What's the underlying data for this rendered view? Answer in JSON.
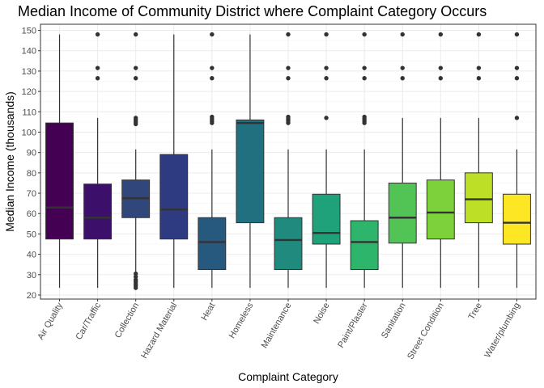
{
  "chart_data": {
    "type": "boxplot",
    "title": "Median Income of Community District where Complaint Category Occurs",
    "xlabel": "Complaint Category",
    "ylabel": "Median Income (thousands)",
    "ylim": [
      18,
      153
    ],
    "yticks": [
      20,
      30,
      40,
      50,
      60,
      70,
      80,
      90,
      100,
      110,
      120,
      130,
      140,
      150
    ],
    "grid": true,
    "categories": [
      "Air Quality",
      "Car/Traffic",
      "Collection",
      "Hazard Material",
      "Heat",
      "Homeless",
      "Maintenance",
      "Noise",
      "Paint/Plaster",
      "Sanitation",
      "Street Condition",
      "Tree",
      "Water/plumbing"
    ],
    "colors": [
      "#440154",
      "#3c0f6b",
      "#31477b",
      "#2f3b80",
      "#27597f",
      "#21707f",
      "#1f8a7d",
      "#1fa17a",
      "#2db56b",
      "#52c355",
      "#7dd23b",
      "#bddf26",
      "#fde725"
    ],
    "boxes": [
      {
        "low": 23.5,
        "q1": 47.5,
        "median": 63,
        "q3": 104.5,
        "high": 148,
        "outliers": []
      },
      {
        "low": 23.5,
        "q1": 47.5,
        "median": 58,
        "q3": 74.5,
        "high": 107,
        "outliers": [
          126.5,
          131.5,
          148
        ]
      },
      {
        "low": 23.5,
        "q1": 58,
        "median": 67.5,
        "q3": 76.5,
        "high": 91.5,
        "outliers": [
          23.5,
          24.5,
          25.5,
          26.5,
          27.5,
          29,
          30.5,
          104,
          105,
          106,
          107,
          126.5,
          131.5,
          148
        ]
      },
      {
        "low": 23.5,
        "q1": 47.5,
        "median": 62,
        "q3": 89,
        "high": 148,
        "outliers": []
      },
      {
        "low": 23.5,
        "q1": 32.5,
        "median": 46,
        "q3": 58,
        "high": 91.5,
        "outliers": [
          104.5,
          105.5,
          106.5,
          107.5,
          126.5,
          131.5,
          148
        ]
      },
      {
        "low": 23.5,
        "q1": 55.5,
        "median": 104.5,
        "q3": 106,
        "high": 148,
        "outliers": []
      },
      {
        "low": 23.5,
        "q1": 32.5,
        "median": 47,
        "q3": 58,
        "high": 91.5,
        "outliers": [
          104.5,
          105.5,
          106.5,
          107.5,
          126.5,
          131.5,
          148
        ]
      },
      {
        "low": 23.5,
        "q1": 45,
        "median": 50.5,
        "q3": 69.5,
        "high": 91.5,
        "outliers": [
          107,
          126.5,
          131.5,
          148
        ]
      },
      {
        "low": 23.5,
        "q1": 32.5,
        "median": 46,
        "q3": 56.5,
        "high": 91.5,
        "outliers": [
          104.5,
          105.5,
          106.5,
          107.5,
          126.5,
          131.5,
          148
        ]
      },
      {
        "low": 23.5,
        "q1": 45.5,
        "median": 58,
        "q3": 75,
        "high": 107,
        "outliers": [
          126.5,
          131.5,
          148
        ]
      },
      {
        "low": 23.5,
        "q1": 47.5,
        "median": 60.5,
        "q3": 76.5,
        "high": 107,
        "outliers": [
          126.5,
          131.5,
          148
        ]
      },
      {
        "low": 23.5,
        "q1": 55.5,
        "median": 67,
        "q3": 80,
        "high": 107,
        "outliers": [
          126.5,
          131.5,
          148
        ]
      },
      {
        "low": 23.5,
        "q1": 45,
        "median": 55.5,
        "q3": 69.5,
        "high": 91.5,
        "outliers": [
          107,
          126.5,
          131.5,
          148
        ]
      }
    ]
  }
}
